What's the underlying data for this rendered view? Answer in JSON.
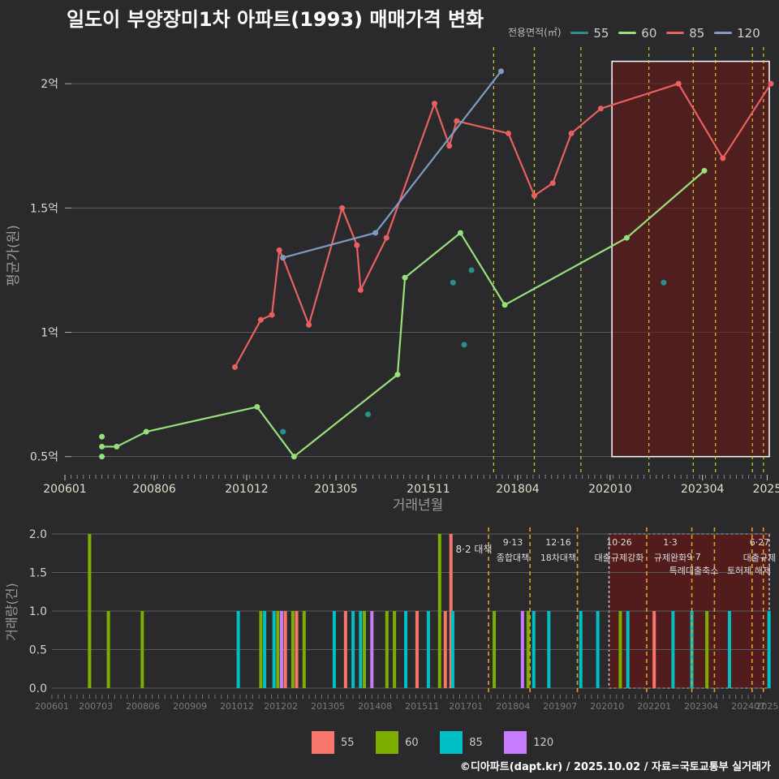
{
  "title": "일도이 부양장미1차 아파트(1993) 매매가격 변화",
  "legend_title": "전용면적(㎡)",
  "series_colors": {
    "55": "#f8766d",
    "60": "#7cae00",
    "85": "#00bfc4",
    "120": "#c77cff"
  },
  "line_colors": {
    "55": "#2a8f8f",
    "60": "#98e07a",
    "85": "#e86060",
    "120": "#7f9bc0"
  },
  "source": "©디아파트(dapt.kr) / 2025.10.02 / 자료=국토교통부 실거래가",
  "chart_data": [
    {
      "type": "line",
      "xlabel": "거래년월",
      "ylabel": "평균가(원)",
      "xlim": [
        2006.0,
        2025.1
      ],
      "ylim": [
        0.45,
        2.18
      ],
      "x_ticks": [
        "200601",
        "200806",
        "201012",
        "201305",
        "201511",
        "201804",
        "202010",
        "202304",
        "2025"
      ],
      "y_ticks": [
        {
          "v": 0.5,
          "label": "0.5억"
        },
        {
          "v": 1.0,
          "label": "1억"
        },
        {
          "v": 1.5,
          "label": "1.5억"
        },
        {
          "v": 2.0,
          "label": "2억"
        }
      ],
      "series": [
        {
          "name": "55",
          "line": false,
          "x": [
            2014.2,
            2016.8,
            2017.0,
            2016.5,
            2022.2,
            2011.9
          ],
          "y": [
            0.67,
            0.95,
            1.25,
            1.2,
            1.2,
            0.6
          ]
        },
        {
          "name": "60",
          "line": true,
          "x": [
            2007.0,
            2007.4,
            2008.2,
            2011.2,
            2012.2,
            2015.0,
            2015.2,
            2016.7,
            2017.9,
            2021.2,
            2023.3
          ],
          "y": [
            0.54,
            0.54,
            0.6,
            0.7,
            0.5,
            0.83,
            1.22,
            1.4,
            1.11,
            1.38,
            1.65
          ],
          "extra_points": [
            {
              "x": 2007.0,
              "y": 0.58
            },
            {
              "x": 2007.0,
              "y": 0.5
            }
          ]
        },
        {
          "name": "85",
          "line": true,
          "x": [
            2010.6,
            2011.3,
            2011.6,
            2011.8,
            2011.9,
            2012.6,
            2013.5,
            2013.9,
            2014.0,
            2014.7,
            2016.0,
            2016.4,
            2016.6,
            2018.0,
            2018.7,
            2019.2,
            2019.7,
            2020.5,
            2022.6,
            2023.8,
            2025.1
          ],
          "y": [
            0.86,
            1.05,
            1.07,
            1.33,
            1.3,
            1.03,
            1.5,
            1.35,
            1.17,
            1.38,
            1.92,
            1.75,
            1.85,
            1.8,
            1.55,
            1.6,
            1.8,
            1.9,
            2.0,
            1.7,
            2.0
          ]
        },
        {
          "name": "120",
          "line": true,
          "x": [
            2011.9,
            2014.4,
            2017.8
          ],
          "y": [
            1.3,
            1.4,
            2.05
          ]
        }
      ],
      "vlines": [
        2017.6,
        2018.7,
        2019.96,
        2021.8,
        2023.0,
        2023.6,
        2024.6,
        2024.9
      ],
      "highlight": {
        "x0": 2020.8,
        "x1": 2025.1,
        "y0": 0.5,
        "y1": 2.09
      }
    },
    {
      "type": "bar",
      "ylabel": "거래량(건)",
      "xlim": [
        2006.0,
        2025.1
      ],
      "ylim": [
        0,
        2
      ],
      "x_ticks": [
        "200601",
        "200703",
        "200806",
        "200909",
        "201012",
        "201202",
        "201305",
        "201408",
        "201511",
        "201701",
        "201804",
        "201907",
        "202010",
        "202201",
        "202304",
        "202407",
        "2025"
      ],
      "y_ticks": [
        {
          "v": 0,
          "label": "0.0"
        },
        {
          "v": 0.5,
          "label": "0.5"
        },
        {
          "v": 1.0,
          "label": "1.0"
        },
        {
          "v": 1.5,
          "label": "1.5"
        },
        {
          "v": 2.0,
          "label": "2.0"
        }
      ],
      "bars": [
        {
          "x": 2007.0,
          "v": 2,
          "s": "60"
        },
        {
          "x": 2007.5,
          "v": 1,
          "s": "60"
        },
        {
          "x": 2008.4,
          "v": 1,
          "s": "60"
        },
        {
          "x": 2010.95,
          "v": 1,
          "s": "85"
        },
        {
          "x": 2011.55,
          "v": 1,
          "s": "60"
        },
        {
          "x": 2011.65,
          "v": 1,
          "s": "85"
        },
        {
          "x": 2011.9,
          "v": 1,
          "s": "85"
        },
        {
          "x": 2012.0,
          "v": 1,
          "s": "60"
        },
        {
          "x": 2012.1,
          "v": 1,
          "s": "120"
        },
        {
          "x": 2012.2,
          "v": 1,
          "s": "55"
        },
        {
          "x": 2012.4,
          "v": 1,
          "s": "60"
        },
        {
          "x": 2012.5,
          "v": 1,
          "s": "55"
        },
        {
          "x": 2012.7,
          "v": 1,
          "s": "60"
        },
        {
          "x": 2013.5,
          "v": 1,
          "s": "85"
        },
        {
          "x": 2013.8,
          "v": 1,
          "s": "55"
        },
        {
          "x": 2014.0,
          "v": 1,
          "s": "85"
        },
        {
          "x": 2014.2,
          "v": 1,
          "s": "85"
        },
        {
          "x": 2014.3,
          "v": 1,
          "s": "60"
        },
        {
          "x": 2014.5,
          "v": 1,
          "s": "120"
        },
        {
          "x": 2014.9,
          "v": 1,
          "s": "60"
        },
        {
          "x": 2015.1,
          "v": 1,
          "s": "60"
        },
        {
          "x": 2015.4,
          "v": 1,
          "s": "85"
        },
        {
          "x": 2015.7,
          "v": 1,
          "s": "55"
        },
        {
          "x": 2016.0,
          "v": 1,
          "s": "85"
        },
        {
          "x": 2016.3,
          "v": 2,
          "s": "60"
        },
        {
          "x": 2016.45,
          "v": 1,
          "s": "55"
        },
        {
          "x": 2016.6,
          "v": 2,
          "s": "55"
        },
        {
          "x": 2016.65,
          "v": 1,
          "s": "85"
        },
        {
          "x": 2017.75,
          "v": 1,
          "s": "60"
        },
        {
          "x": 2018.5,
          "v": 1,
          "s": "120"
        },
        {
          "x": 2018.65,
          "v": 1,
          "s": "60"
        },
        {
          "x": 2018.8,
          "v": 1,
          "s": "85"
        },
        {
          "x": 2019.2,
          "v": 1,
          "s": "85"
        },
        {
          "x": 2020.05,
          "v": 1,
          "s": "85"
        },
        {
          "x": 2020.5,
          "v": 1,
          "s": "85"
        },
        {
          "x": 2021.1,
          "v": 1,
          "s": "60"
        },
        {
          "x": 2021.3,
          "v": 1,
          "s": "85"
        },
        {
          "x": 2022.0,
          "v": 1,
          "s": "55"
        },
        {
          "x": 2022.5,
          "v": 1,
          "s": "85"
        },
        {
          "x": 2023.0,
          "v": 1,
          "s": "85"
        },
        {
          "x": 2023.4,
          "v": 1,
          "s": "60"
        },
        {
          "x": 2024.0,
          "v": 1,
          "s": "85"
        },
        {
          "x": 2025.05,
          "v": 1,
          "s": "85"
        }
      ],
      "vlines": [
        2017.6,
        2018.7,
        2019.96,
        2021.8,
        2023.0,
        2023.6,
        2024.6,
        2024.9
      ],
      "highlight": {
        "x0": 2020.8,
        "x1": 2025.1,
        "y0": 0,
        "y1": 2
      }
    }
  ],
  "annotations": [
    {
      "date": "8·2",
      "label": "대책"
    },
    {
      "date": "9·13",
      "label": "종합대책"
    },
    {
      "date": "12·16",
      "label": "18차대책"
    },
    {
      "date": "10·26",
      "label": "대출규제강화"
    },
    {
      "date": "1·3",
      "label": "규제완화"
    },
    {
      "date": "9·7",
      "label": "특례대출축소"
    },
    {
      "date": "",
      "label": "토허제 해제"
    },
    {
      "date": "6·27",
      "label": "대출규제"
    }
  ]
}
